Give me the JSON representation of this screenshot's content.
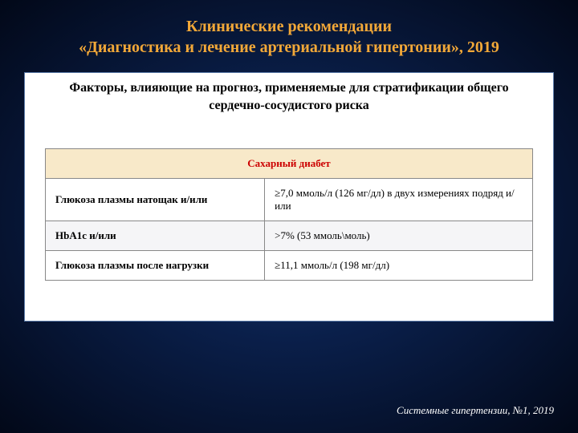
{
  "title": {
    "line1": "Клинические рекомендации",
    "line2": "«Диагностика и лечение артериальной гипертонии», 2019"
  },
  "panel": {
    "header": "Факторы, влияющие на прогноз, применяемые для стратификации общего сердечно-сосудистого риска"
  },
  "table": {
    "section_header": "Сахарный диабет",
    "rows": [
      {
        "label": "Глюкоза плазмы натощак и/или",
        "value": "≥7,0 ммоль/л (126 мг/дл) в двух измерениях подряд и/или"
      },
      {
        "label": "HbA1c и/или",
        "value": ">7% (53 ммоль\\моль)"
      },
      {
        "label": "Глюкоза плазмы после нагрузки",
        "value": "≥11,1 ммоль/л (198 мг/дл)"
      }
    ]
  },
  "citation": "Системные гипертензии, №1, 2019",
  "styling": {
    "title_color": "#f2a838",
    "title_fontsize": 20,
    "background_gradient_center": "#1a3a6e",
    "background_gradient_edge": "#020818",
    "panel_background": "#ffffff",
    "panel_border": "#5a7aa8",
    "section_header_bg": "#f8e9c9",
    "section_header_color": "#cc0000",
    "table_border_color": "#888888",
    "alt_row_bg": "#f5f5f7",
    "citation_color": "#ffffff",
    "body_fontsize": 13,
    "panel_header_fontsize": 16
  }
}
